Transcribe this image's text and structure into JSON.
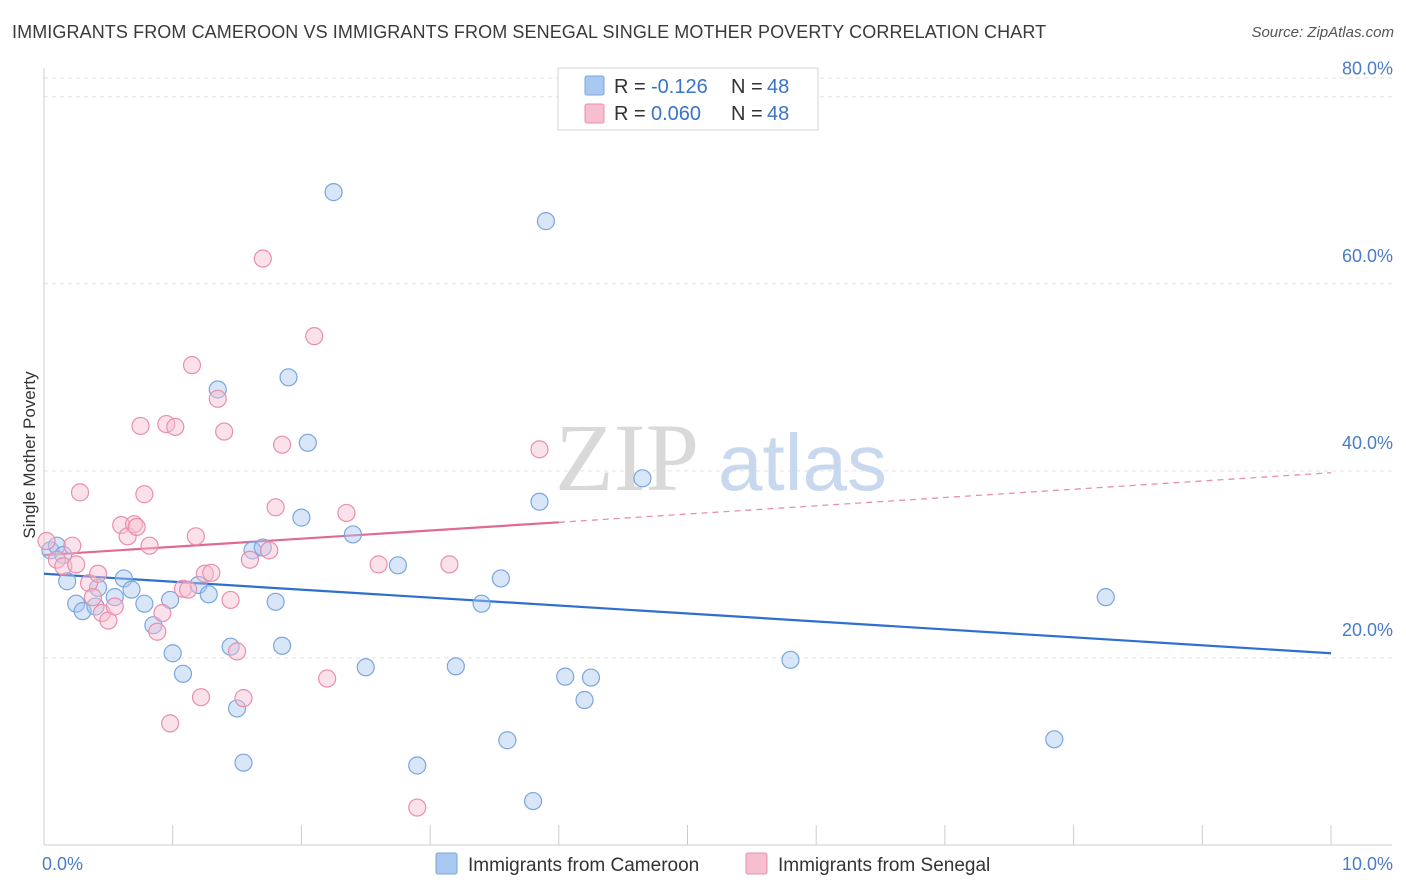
{
  "header": {
    "title": "IMMIGRANTS FROM CAMEROON VS IMMIGRANTS FROM SENEGAL SINGLE MOTHER POVERTY CORRELATION CHART",
    "source": "Source: ZipAtlas.com"
  },
  "watermark": {
    "zip": "ZIP",
    "atlas": "atlas"
  },
  "chart_data": {
    "type": "scatter",
    "title": "IMMIGRANTS FROM CAMEROON VS IMMIGRANTS FROM SENEGAL SINGLE MOTHER POVERTY CORRELATION CHART",
    "xlabel": "",
    "ylabel": "Single Mother Poverty",
    "xlim": [
      0,
      10
    ],
    "ylim": [
      0,
      82
    ],
    "x_tick_labels": {
      "min": "0.0%",
      "max": "10.0%"
    },
    "y_ticks": [
      {
        "value": 20,
        "label": "20.0%"
      },
      {
        "value": 40,
        "label": "40.0%"
      },
      {
        "value": 60,
        "label": "60.0%"
      },
      {
        "value": 80,
        "label": "80.0%"
      }
    ],
    "legend": {
      "rows": [
        {
          "r_label": "R =",
          "r_value": "-0.126",
          "n_label": "N =",
          "n_value": "48"
        },
        {
          "r_label": "R =",
          "r_value": "0.060",
          "n_label": "N =",
          "n_value": "48"
        }
      ]
    },
    "series": [
      {
        "name": "Immigrants from Cameroon",
        "color": "#a8c8f0",
        "stroke": "#7aa6e0",
        "trend_color": "#2f6fce",
        "trend": {
          "x0": 0.0,
          "y0": 29.0,
          "x1": 10.0,
          "y1": 20.5
        },
        "points": [
          [
            0.05,
            31.5
          ],
          [
            0.1,
            32.0
          ],
          [
            0.15,
            31.0
          ],
          [
            0.18,
            28.2
          ],
          [
            0.25,
            25.8
          ],
          [
            0.3,
            25.0
          ],
          [
            0.4,
            25.5
          ],
          [
            0.42,
            27.5
          ],
          [
            0.55,
            26.5
          ],
          [
            0.62,
            28.5
          ],
          [
            0.68,
            27.3
          ],
          [
            0.78,
            25.8
          ],
          [
            0.85,
            23.5
          ],
          [
            0.98,
            26.2
          ],
          [
            1.0,
            20.5
          ],
          [
            1.08,
            18.3
          ],
          [
            1.2,
            27.8
          ],
          [
            1.28,
            26.8
          ],
          [
            1.35,
            48.7
          ],
          [
            1.45,
            21.2
          ],
          [
            1.5,
            14.6
          ],
          [
            1.55,
            8.8
          ],
          [
            1.62,
            31.5
          ],
          [
            1.7,
            31.8
          ],
          [
            1.8,
            26.0
          ],
          [
            1.85,
            21.3
          ],
          [
            1.9,
            50.0
          ],
          [
            2.0,
            35.0
          ],
          [
            2.05,
            43.0
          ],
          [
            2.25,
            69.8
          ],
          [
            2.4,
            33.2
          ],
          [
            2.5,
            19.0
          ],
          [
            2.75,
            29.9
          ],
          [
            2.9,
            8.5
          ],
          [
            3.2,
            19.1
          ],
          [
            3.4,
            25.8
          ],
          [
            3.55,
            28.5
          ],
          [
            3.6,
            11.2
          ],
          [
            3.8,
            4.7
          ],
          [
            3.85,
            36.7
          ],
          [
            3.9,
            66.7
          ],
          [
            4.05,
            18.0
          ],
          [
            4.2,
            15.5
          ],
          [
            4.25,
            17.9
          ],
          [
            4.65,
            39.2
          ],
          [
            5.8,
            19.8
          ],
          [
            7.85,
            11.3
          ],
          [
            8.25,
            26.5
          ]
        ]
      },
      {
        "name": "Immigrants from Senegal",
        "color": "#f6bfd0",
        "stroke": "#e98fab",
        "trend_color": "#e06a93",
        "trend": {
          "x0": 0.0,
          "y0": 31.0,
          "x1": 4.0,
          "y1": 34.5
        },
        "trend_dashed": {
          "x0": 4.0,
          "y0": 34.5,
          "x1": 10.0,
          "y1": 39.8
        },
        "points": [
          [
            0.02,
            32.5
          ],
          [
            0.1,
            30.5
          ],
          [
            0.15,
            29.8
          ],
          [
            0.22,
            32.0
          ],
          [
            0.25,
            30.0
          ],
          [
            0.28,
            37.7
          ],
          [
            0.35,
            28.0
          ],
          [
            0.38,
            26.5
          ],
          [
            0.42,
            29.0
          ],
          [
            0.45,
            24.8
          ],
          [
            0.5,
            24.0
          ],
          [
            0.55,
            25.5
          ],
          [
            0.6,
            34.2
          ],
          [
            0.65,
            33.0
          ],
          [
            0.7,
            34.3
          ],
          [
            0.72,
            34.0
          ],
          [
            0.75,
            44.8
          ],
          [
            0.78,
            37.5
          ],
          [
            0.82,
            32.0
          ],
          [
            0.88,
            22.8
          ],
          [
            0.92,
            24.8
          ],
          [
            0.95,
            45.0
          ],
          [
            0.98,
            13.0
          ],
          [
            1.02,
            44.7
          ],
          [
            1.08,
            27.4
          ],
          [
            1.12,
            27.3
          ],
          [
            1.15,
            51.3
          ],
          [
            1.18,
            33.0
          ],
          [
            1.22,
            15.8
          ],
          [
            1.25,
            29.0
          ],
          [
            1.3,
            29.1
          ],
          [
            1.35,
            47.7
          ],
          [
            1.4,
            44.2
          ],
          [
            1.45,
            26.2
          ],
          [
            1.5,
            20.7
          ],
          [
            1.55,
            15.7
          ],
          [
            1.6,
            30.5
          ],
          [
            1.7,
            62.7
          ],
          [
            1.75,
            31.5
          ],
          [
            1.8,
            36.1
          ],
          [
            1.85,
            42.8
          ],
          [
            2.1,
            54.4
          ],
          [
            2.2,
            17.8
          ],
          [
            2.35,
            35.5
          ],
          [
            2.6,
            30.0
          ],
          [
            2.9,
            4.0
          ],
          [
            3.15,
            30.0
          ],
          [
            3.85,
            42.3
          ]
        ]
      }
    ]
  }
}
